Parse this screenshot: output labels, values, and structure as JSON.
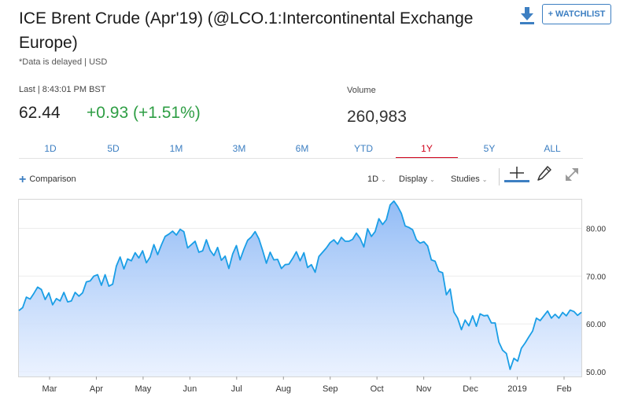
{
  "header": {
    "title": "ICE Brent Crude (Apr'19) (@LCO.1:Intercontinental Exchange Europe)",
    "delayed_note": "*Data is delayed | USD",
    "watchlist_label": "+ WATCHLIST",
    "download_icon": "download-icon"
  },
  "quote": {
    "last_label": "Last | 8:43:01 PM BST",
    "price": "62.44",
    "change": "+0.93 (+1.51%)",
    "volume_label": "Volume",
    "volume": "260,983"
  },
  "colors": {
    "accent": "#3d7fc2",
    "positive": "#2e9e44",
    "active_tab": "#d0021b",
    "line": "#1a9ee6",
    "fill_top": "#8cb8f5"
  },
  "range_tabs": [
    {
      "label": "1D"
    },
    {
      "label": "5D"
    },
    {
      "label": "1M"
    },
    {
      "label": "3M"
    },
    {
      "label": "6M"
    },
    {
      "label": "YTD"
    },
    {
      "label": "1Y",
      "active": true
    },
    {
      "label": "5Y"
    },
    {
      "label": "ALL"
    }
  ],
  "toolbar": {
    "comparison_label": "Comparison",
    "interval_label": "1D",
    "display_label": "Display",
    "studies_label": "Studies",
    "icons": [
      "crosshair-icon",
      "pencil-icon",
      "expand-icon"
    ]
  },
  "chart_data": {
    "type": "area",
    "x_ticks": [
      "Mar",
      "Apr",
      "May",
      "Jun",
      "Jul",
      "Aug",
      "Sep",
      "Oct",
      "Nov",
      "Dec",
      "2019",
      "Feb"
    ],
    "y_ticks": [
      "50.00",
      "60.00",
      "70.00",
      "80.00"
    ],
    "ylim": [
      49,
      86
    ],
    "grid": true,
    "x_range": [
      "Feb 2018",
      "Feb 2019"
    ],
    "series": [
      {
        "values": [
          62.8,
          63.4,
          65.6,
          65.2,
          66.4,
          67.7,
          67.2,
          65.1,
          66.5,
          64.0,
          65.3,
          64.8,
          66.6,
          64.6,
          64.8,
          66.6,
          65.8,
          66.5,
          68.8,
          69.0,
          70.0,
          70.3,
          68.1,
          70.3,
          67.9,
          68.3,
          72.1,
          74.0,
          71.5,
          73.6,
          73.2,
          74.9,
          73.8,
          75.3,
          72.8,
          74.0,
          76.6,
          74.5,
          76.5,
          78.3,
          78.8,
          79.4,
          78.6,
          79.8,
          79.3,
          75.9,
          76.6,
          77.3,
          75.0,
          75.3,
          77.6,
          75.4,
          74.3,
          76.0,
          73.3,
          74.2,
          71.6,
          74.6,
          76.4,
          73.4,
          75.6,
          77.5,
          78.2,
          79.3,
          77.8,
          75.4,
          72.7,
          75.0,
          73.4,
          73.5,
          71.6,
          72.4,
          72.5,
          73.7,
          75.1,
          73.2,
          74.9,
          71.8,
          72.4,
          70.8,
          74.1,
          75.0,
          75.9,
          77.0,
          77.6,
          76.7,
          78.1,
          77.3,
          77.3,
          77.7,
          79.0,
          77.9,
          76.1,
          79.9,
          78.3,
          79.3,
          82.0,
          80.8,
          81.8,
          84.9,
          85.7,
          84.6,
          83.1,
          80.5,
          80.2,
          79.7,
          77.6,
          76.9,
          77.2,
          76.3,
          73.4,
          73.1,
          71.0,
          70.7,
          66.1,
          67.3,
          62.5,
          61.2,
          58.8,
          60.8,
          59.6,
          61.7,
          59.5,
          62.1,
          61.7,
          61.8,
          60.2,
          60.2,
          56.2,
          54.5,
          53.8,
          50.5,
          52.8,
          52.2,
          54.9,
          56.0,
          57.3,
          58.5,
          61.2,
          60.7,
          61.7,
          62.7,
          61.2,
          62.0,
          61.2,
          62.4,
          61.7,
          62.9,
          62.6,
          61.8,
          62.44
        ]
      }
    ]
  }
}
